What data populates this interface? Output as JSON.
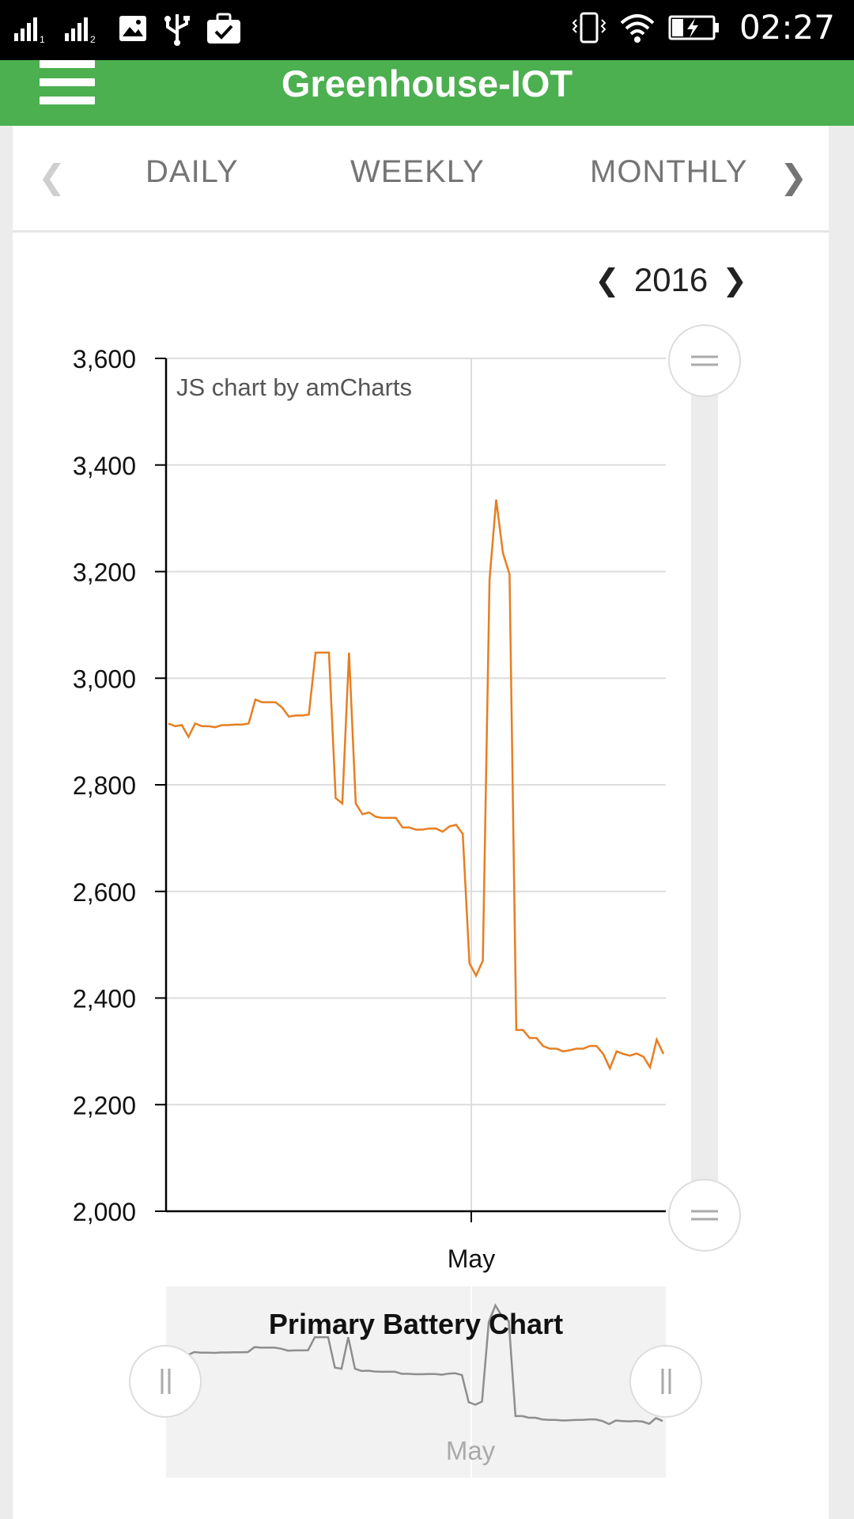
{
  "status_bar": {
    "time": "02:27",
    "icons": [
      "signal-1-icon",
      "signal-2-icon",
      "image-icon",
      "usb-icon",
      "briefcase-check-icon",
      "vibrate-icon",
      "wifi-icon",
      "battery-charging-icon"
    ]
  },
  "app_bar": {
    "title": "Greenhouse-IOT",
    "menu_icon": "hamburger-menu-icon",
    "color": "#4caf50"
  },
  "tabs": {
    "items": [
      "DAILY",
      "WEEKLY",
      "MONTHLY"
    ],
    "prev_icon": "chevron-left-icon",
    "next_icon": "chevron-right-icon"
  },
  "year_nav": {
    "year": "2016",
    "prev_icon": "chevron-left-icon",
    "next_icon": "chevron-right-icon"
  },
  "chart": {
    "credit": "JS chart by amCharts",
    "scrollbar_title": "Primary Battery Chart",
    "line_color": "#e67e22"
  },
  "chart_data": {
    "type": "line",
    "title": "Primary Battery Chart",
    "xlabel": "",
    "ylabel": "",
    "ylim": [
      2000,
      3600
    ],
    "y_ticks": [
      "2,000",
      "2,200",
      "2,400",
      "2,600",
      "2,800",
      "3,000",
      "3,200",
      "3,400",
      "3,600"
    ],
    "x_ticks": [
      "May"
    ],
    "grid": true,
    "series": [
      {
        "values": [
          2915,
          2910,
          2912,
          2890,
          2915,
          2910,
          2910,
          2908,
          2912,
          2912,
          2913,
          2913,
          2915,
          2960,
          2955,
          2955,
          2955,
          2945,
          2928,
          2930,
          2930,
          2932,
          3048,
          3048,
          3048,
          2775,
          2765,
          3048,
          2765,
          2745,
          2748,
          2740,
          2738,
          2738,
          2738,
          2720,
          2720,
          2716,
          2716,
          2718,
          2718,
          2712,
          2722,
          2725,
          2708,
          2465,
          2442,
          2470,
          3185,
          3335,
          3235,
          3195,
          2340,
          2340,
          2325,
          2325,
          2310,
          2305,
          2305,
          2300,
          2302,
          2305,
          2305,
          2310,
          2310,
          2295,
          2268,
          2300,
          2295,
          2292,
          2296,
          2290,
          2270,
          2322,
          2295
        ]
      }
    ]
  }
}
